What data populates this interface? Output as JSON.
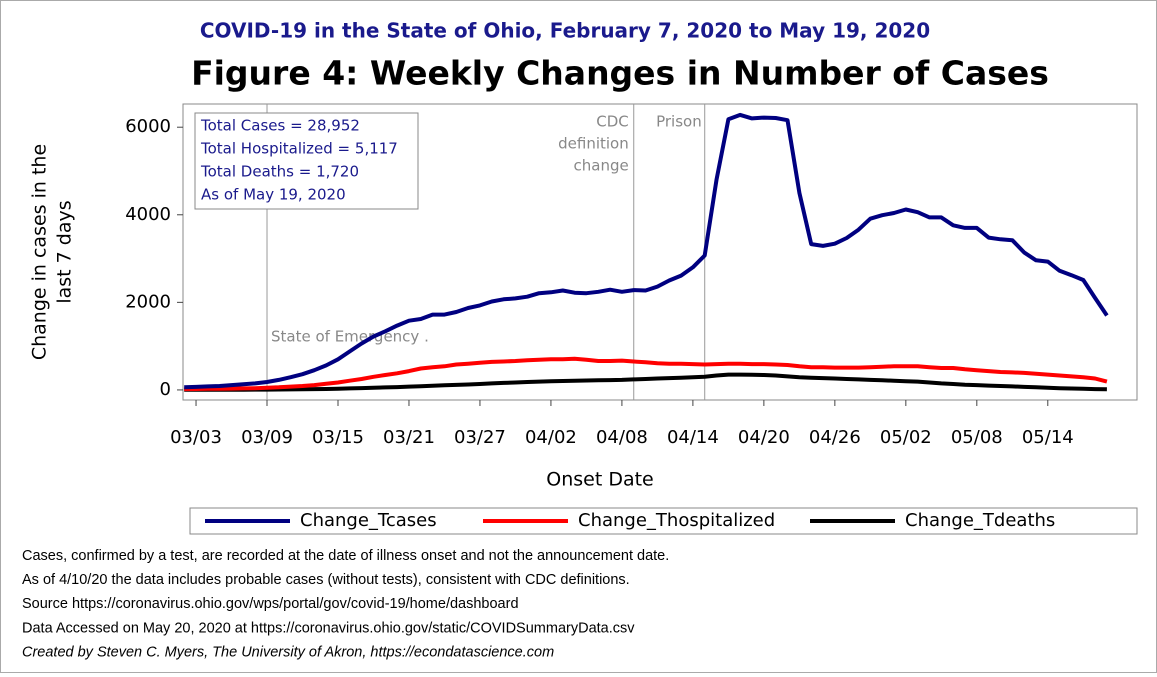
{
  "chart_data": {
    "type": "line",
    "subtitle": "COVID-19 in the State of Ohio, February 7, 2020 to May 19, 2020",
    "title": "Figure 4: Weekly Changes in Number of Cases",
    "y_label": [
      "Change in cases in the",
      "last 7 days"
    ],
    "x_label": "Onset Date",
    "info_box": [
      "Total Cases = 28,952",
      "Total Hospitalized = 5,117",
      "Total Deaths = 1,720",
      "As of May 19, 2020"
    ],
    "annotations": [
      {
        "index": 7,
        "text": [
          "State of Emergency ."
        ]
      },
      {
        "index": 38,
        "text": [
          "CDC",
          "definition",
          "change"
        ]
      },
      {
        "index": 44,
        "text": [
          "Prison"
        ]
      }
    ],
    "footnotes": [
      "Cases, confirmed by a test, are recorded at the date of illness onset and not the announcement date.",
      "As of 4/10/20 the data includes probable cases (without tests), consistent with CDC definitions.",
      "Source https://coronavirus.ohio.gov/wps/portal/gov/covid-19/home/dashboard",
      "Data Accessed on May 20, 2020 at https://coronavirus.ohio.gov/static/COVIDSummaryData.csv",
      "Created by Steven C. Myers, The University of Akron, https://econdatascience.com"
    ],
    "categories": [
      null,
      "03/03",
      null,
      null,
      null,
      null,
      null,
      "03/09",
      null,
      null,
      null,
      null,
      null,
      "03/15",
      null,
      null,
      null,
      null,
      null,
      "03/21",
      null,
      null,
      null,
      null,
      null,
      "03/27",
      null,
      null,
      null,
      null,
      null,
      "04/02",
      null,
      null,
      null,
      null,
      null,
      "04/08",
      null,
      null,
      null,
      null,
      null,
      "04/14",
      null,
      null,
      null,
      null,
      null,
      "04/20",
      null,
      null,
      null,
      null,
      null,
      "04/26",
      null,
      null,
      null,
      null,
      null,
      "05/02",
      null,
      null,
      null,
      null,
      null,
      "05/08",
      null,
      null,
      null,
      null,
      null,
      "05/14",
      null,
      null,
      null,
      null,
      null
    ],
    "series": [
      {
        "name": "Change_Tcases",
        "color": "#000080",
        "values": [
          60,
          70,
          80,
          90,
          110,
          130,
          150,
          180,
          230,
          290,
          360,
          450,
          560,
          700,
          880,
          1060,
          1220,
          1340,
          1470,
          1580,
          1620,
          1720,
          1720,
          1780,
          1870,
          1930,
          2020,
          2070,
          2090,
          2130,
          2210,
          2230,
          2270,
          2220,
          2210,
          2240,
          2290,
          2240,
          2280,
          2270,
          2360,
          2500,
          2610,
          2800,
          3070,
          4800,
          6180,
          6280,
          6200,
          6220,
          6210,
          6160,
          4500,
          3330,
          3290,
          3340,
          3470,
          3660,
          3910,
          3990,
          4040,
          4120,
          4060,
          3940,
          3940,
          3760,
          3700,
          3700,
          3480,
          3440,
          3420,
          3140,
          2960,
          2930,
          2720,
          2620,
          2510,
          2100,
          1700
        ]
      },
      {
        "name": "Change_Thospitalized",
        "color": "#ff0000",
        "values": [
          20,
          22,
          25,
          28,
          30,
          35,
          40,
          50,
          60,
          75,
          90,
          110,
          140,
          170,
          210,
          250,
          300,
          340,
          380,
          430,
          490,
          520,
          540,
          580,
          600,
          620,
          640,
          650,
          660,
          680,
          690,
          700,
          700,
          710,
          690,
          660,
          660,
          670,
          650,
          630,
          610,
          600,
          600,
          590,
          580,
          590,
          600,
          600,
          590,
          590,
          580,
          570,
          540,
          520,
          520,
          510,
          510,
          510,
          520,
          530,
          540,
          540,
          540,
          520,
          500,
          500,
          470,
          450,
          430,
          410,
          400,
          390,
          370,
          350,
          330,
          310,
          290,
          260,
          190
        ]
      },
      {
        "name": "Change_Tdeaths",
        "color": "#000000",
        "values": [
          5,
          5,
          5,
          5,
          6,
          6,
          7,
          8,
          10,
          12,
          15,
          18,
          22,
          28,
          35,
          42,
          50,
          58,
          65,
          75,
          85,
          95,
          105,
          115,
          125,
          135,
          150,
          160,
          170,
          180,
          190,
          200,
          205,
          210,
          215,
          220,
          225,
          230,
          240,
          250,
          260,
          270,
          280,
          290,
          300,
          330,
          350,
          350,
          345,
          340,
          330,
          310,
          290,
          280,
          270,
          260,
          250,
          240,
          230,
          220,
          210,
          200,
          190,
          170,
          150,
          135,
          120,
          110,
          100,
          90,
          80,
          70,
          60,
          50,
          40,
          32,
          25,
          20,
          15
        ]
      }
    ],
    "ylim": [
      -230,
      6530
    ],
    "yticks": [
      0,
      2000,
      4000,
      6000
    ]
  }
}
